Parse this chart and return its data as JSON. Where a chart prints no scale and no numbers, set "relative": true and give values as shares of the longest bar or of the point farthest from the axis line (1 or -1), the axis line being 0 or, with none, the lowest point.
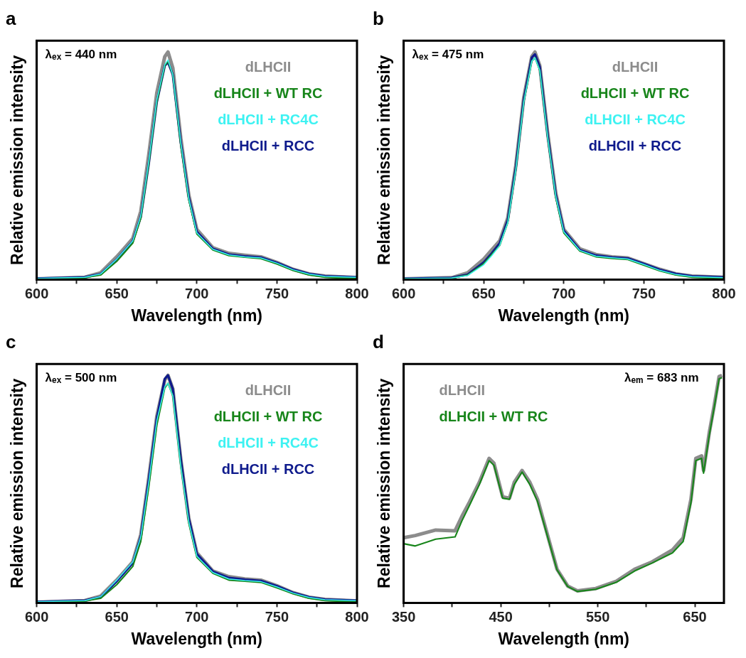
{
  "chart_data": [
    {
      "type": "line",
      "title": "a",
      "xlabel": "Wavelength (nm)",
      "ylabel": "Relative emission intensity",
      "relative": true,
      "tick_labels": "x",
      "grid": false,
      "legend": "top right",
      "marker": "none",
      "line_style": "solid",
      "annotations": [
        "λ$_{ex}$ = 440 nm"
      ],
      "xlim": [
        600,
        800
      ],
      "xticks": [
        600,
        {
          "value": 625,
          "label": null
        },
        650,
        {
          "value": 675,
          "label": null
        },
        700,
        {
          "value": 725,
          "label": null
        },
        750,
        {
          "value": 775,
          "label": null
        },
        800
      ],
      "x": [
        600,
        630,
        640,
        650,
        655,
        660,
        665,
        670,
        675,
        680,
        682,
        685,
        690,
        695,
        700,
        710,
        720,
        730,
        740,
        750,
        760,
        770,
        780,
        800
      ],
      "series": [
        {
          "name": "dLHCII",
          "color": "#8c8c8c",
          "values": [
            0.003,
            0.01,
            0.03,
            0.1,
            0.14,
            0.18,
            0.3,
            0.55,
            0.82,
            0.98,
            1.0,
            0.93,
            0.62,
            0.37,
            0.22,
            0.14,
            0.115,
            0.107,
            0.1,
            0.075,
            0.045,
            0.025,
            0.015,
            0.008
          ]
        },
        {
          "name": "dLHCII + WT RC",
          "color": "#17851a",
          "values": [
            0.003,
            0.008,
            0.02,
            0.08,
            0.12,
            0.16,
            0.27,
            0.51,
            0.78,
            0.94,
            0.96,
            0.9,
            0.59,
            0.35,
            0.2,
            0.13,
            0.105,
            0.098,
            0.092,
            0.068,
            0.04,
            0.02,
            0.01,
            0.004
          ]
        },
        {
          "name": "dLHCII + RC4C",
          "color": "#3df2f2",
          "values": [
            0.005,
            0.01,
            0.025,
            0.09,
            0.13,
            0.17,
            0.28,
            0.52,
            0.79,
            0.945,
            0.965,
            0.9,
            0.6,
            0.355,
            0.205,
            0.133,
            0.108,
            0.1,
            0.095,
            0.072,
            0.043,
            0.024,
            0.014,
            0.01
          ]
        },
        {
          "name": "dLHCII + RCC",
          "color": "#0e1a8c",
          "values": [
            0.005,
            0.01,
            0.024,
            0.088,
            0.128,
            0.168,
            0.275,
            0.51,
            0.78,
            0.94,
            0.955,
            0.9,
            0.6,
            0.36,
            0.21,
            0.135,
            0.11,
            0.102,
            0.097,
            0.074,
            0.045,
            0.025,
            0.015,
            0.01
          ]
        }
      ]
    },
    {
      "type": "line",
      "title": "b",
      "xlabel": "Wavelength (nm)",
      "ylabel": "Relative emission intensity",
      "relative": true,
      "tick_labels": "x",
      "grid": false,
      "legend": "top right",
      "marker": "none",
      "line_style": "solid",
      "annotations": [
        "λ$_{ex}$ = 475 nm"
      ],
      "xlim": [
        600,
        800
      ],
      "xticks": [
        600,
        {
          "value": 625,
          "label": null
        },
        650,
        {
          "value": 675,
          "label": null
        },
        700,
        {
          "value": 725,
          "label": null
        },
        750,
        {
          "value": 775,
          "label": null
        },
        800
      ],
      "x": [
        600,
        630,
        640,
        650,
        655,
        660,
        665,
        670,
        675,
        680,
        682,
        685,
        690,
        695,
        700,
        710,
        720,
        730,
        740,
        750,
        760,
        770,
        780,
        800
      ],
      "series": [
        {
          "name": "dLHCII",
          "color": "#8c8c8c",
          "values": [
            0.003,
            0.008,
            0.03,
            0.09,
            0.13,
            0.17,
            0.27,
            0.5,
            0.8,
            0.98,
            1.0,
            0.94,
            0.64,
            0.38,
            0.22,
            0.135,
            0.11,
            0.1,
            0.095,
            0.07,
            0.045,
            0.025,
            0.015,
            0.01
          ]
        },
        {
          "name": "dLHCII + WT RC",
          "color": "#17851a",
          "values": [
            0.003,
            0.006,
            0.02,
            0.07,
            0.11,
            0.15,
            0.25,
            0.48,
            0.78,
            0.96,
            0.975,
            0.92,
            0.62,
            0.36,
            0.205,
            0.125,
            0.1,
            0.093,
            0.088,
            0.063,
            0.038,
            0.02,
            0.01,
            0.005
          ]
        },
        {
          "name": "dLHCII + RC4C",
          "color": "#3df2f2",
          "values": [
            0.004,
            0.007,
            0.018,
            0.065,
            0.105,
            0.15,
            0.25,
            0.48,
            0.78,
            0.96,
            0.975,
            0.92,
            0.62,
            0.365,
            0.21,
            0.128,
            0.103,
            0.096,
            0.09,
            0.066,
            0.04,
            0.022,
            0.013,
            0.008
          ]
        },
        {
          "name": "dLHCII + RCC",
          "color": "#0e1a8c",
          "values": [
            0.004,
            0.008,
            0.022,
            0.075,
            0.115,
            0.16,
            0.26,
            0.49,
            0.79,
            0.975,
            0.99,
            0.935,
            0.63,
            0.37,
            0.215,
            0.13,
            0.106,
            0.098,
            0.093,
            0.069,
            0.043,
            0.025,
            0.015,
            0.01
          ]
        }
      ]
    },
    {
      "type": "line",
      "title": "c",
      "xlabel": "Wavelength (nm)",
      "ylabel": "Relative emission intensity",
      "relative": true,
      "tick_labels": "x",
      "grid": false,
      "legend": "top right",
      "marker": "none",
      "line_style": "solid",
      "annotations": [
        "λ$_{ex}$ = 500 nm"
      ],
      "xlim": [
        600,
        800
      ],
      "xticks": [
        600,
        {
          "value": 625,
          "label": null
        },
        650,
        {
          "value": 675,
          "label": null
        },
        700,
        {
          "value": 725,
          "label": null
        },
        750,
        {
          "value": 775,
          "label": null
        },
        800
      ],
      "x": [
        600,
        630,
        640,
        650,
        655,
        660,
        665,
        670,
        675,
        680,
        682,
        685,
        690,
        695,
        700,
        710,
        720,
        730,
        740,
        750,
        760,
        770,
        780,
        800
      ],
      "series": [
        {
          "name": "dLHCII",
          "color": "#8c8c8c",
          "values": [
            0.003,
            0.01,
            0.03,
            0.1,
            0.14,
            0.18,
            0.3,
            0.55,
            0.82,
            0.98,
            1.0,
            0.94,
            0.63,
            0.37,
            0.22,
            0.14,
            0.115,
            0.105,
            0.1,
            0.075,
            0.045,
            0.025,
            0.015,
            0.008
          ]
        },
        {
          "name": "dLHCII + WT RC",
          "color": "#17851a",
          "values": [
            0.003,
            0.008,
            0.02,
            0.08,
            0.12,
            0.16,
            0.27,
            0.51,
            0.78,
            0.945,
            0.965,
            0.91,
            0.6,
            0.35,
            0.2,
            0.13,
            0.1,
            0.095,
            0.09,
            0.066,
            0.04,
            0.02,
            0.01,
            0.004
          ]
        },
        {
          "name": "dLHCII + RC4C",
          "color": "#3df2f2",
          "values": [
            0.005,
            0.01,
            0.028,
            0.1,
            0.14,
            0.18,
            0.29,
            0.53,
            0.8,
            0.95,
            0.965,
            0.91,
            0.6,
            0.355,
            0.205,
            0.133,
            0.105,
            0.098,
            0.093,
            0.07,
            0.043,
            0.024,
            0.014,
            0.01
          ]
        },
        {
          "name": "dLHCII + RCC",
          "color": "#0e1a8c",
          "values": [
            0.005,
            0.01,
            0.026,
            0.095,
            0.135,
            0.175,
            0.29,
            0.54,
            0.81,
            0.985,
            1.0,
            0.94,
            0.63,
            0.37,
            0.215,
            0.138,
            0.11,
            0.102,
            0.097,
            0.074,
            0.045,
            0.025,
            0.015,
            0.01
          ]
        }
      ]
    },
    {
      "type": "line",
      "title": "d",
      "xlabel": "Wavelength (nm)",
      "ylabel": "Relative emission intensity",
      "relative": true,
      "tick_labels": "x",
      "grid": false,
      "legend": "top left",
      "marker": "none",
      "line_style": "solid",
      "annotations": [
        "λ$_{em}$ = 683 nm"
      ],
      "xlim": [
        350,
        680
      ],
      "xticks": [
        350,
        {
          "value": 400,
          "label": null
        },
        450,
        {
          "value": 500,
          "label": null
        },
        550,
        {
          "value": 600,
          "label": null
        },
        650
      ],
      "x": [
        350,
        362,
        383,
        403,
        410,
        418,
        428,
        438,
        443,
        452,
        459,
        464,
        472,
        480,
        488,
        497,
        508,
        519,
        529,
        548,
        569,
        588,
        606,
        627,
        638,
        646,
        651,
        657,
        659,
        665,
        670,
        675,
        678
      ],
      "series": [
        {
          "name": "dLHCII",
          "color": "#8c8c8c",
          "values": [
            0.286,
            0.296,
            0.32,
            0.317,
            0.38,
            0.444,
            0.53,
            0.635,
            0.614,
            0.466,
            0.46,
            0.53,
            0.582,
            0.53,
            0.455,
            0.317,
            0.148,
            0.074,
            0.053,
            0.063,
            0.095,
            0.148,
            0.18,
            0.233,
            0.286,
            0.455,
            0.635,
            0.646,
            0.582,
            0.751,
            0.868,
            0.995,
            1.0
          ]
        },
        {
          "name": "dLHCII + WT RC",
          "color": "#17851a",
          "values": [
            0.26,
            0.25,
            0.28,
            0.29,
            0.36,
            0.43,
            0.52,
            0.625,
            0.605,
            0.46,
            0.455,
            0.52,
            0.575,
            0.52,
            0.445,
            0.31,
            0.145,
            0.072,
            0.05,
            0.06,
            0.09,
            0.14,
            0.175,
            0.22,
            0.27,
            0.44,
            0.625,
            0.635,
            0.57,
            0.74,
            0.86,
            0.985,
            0.99
          ]
        }
      ]
    }
  ]
}
